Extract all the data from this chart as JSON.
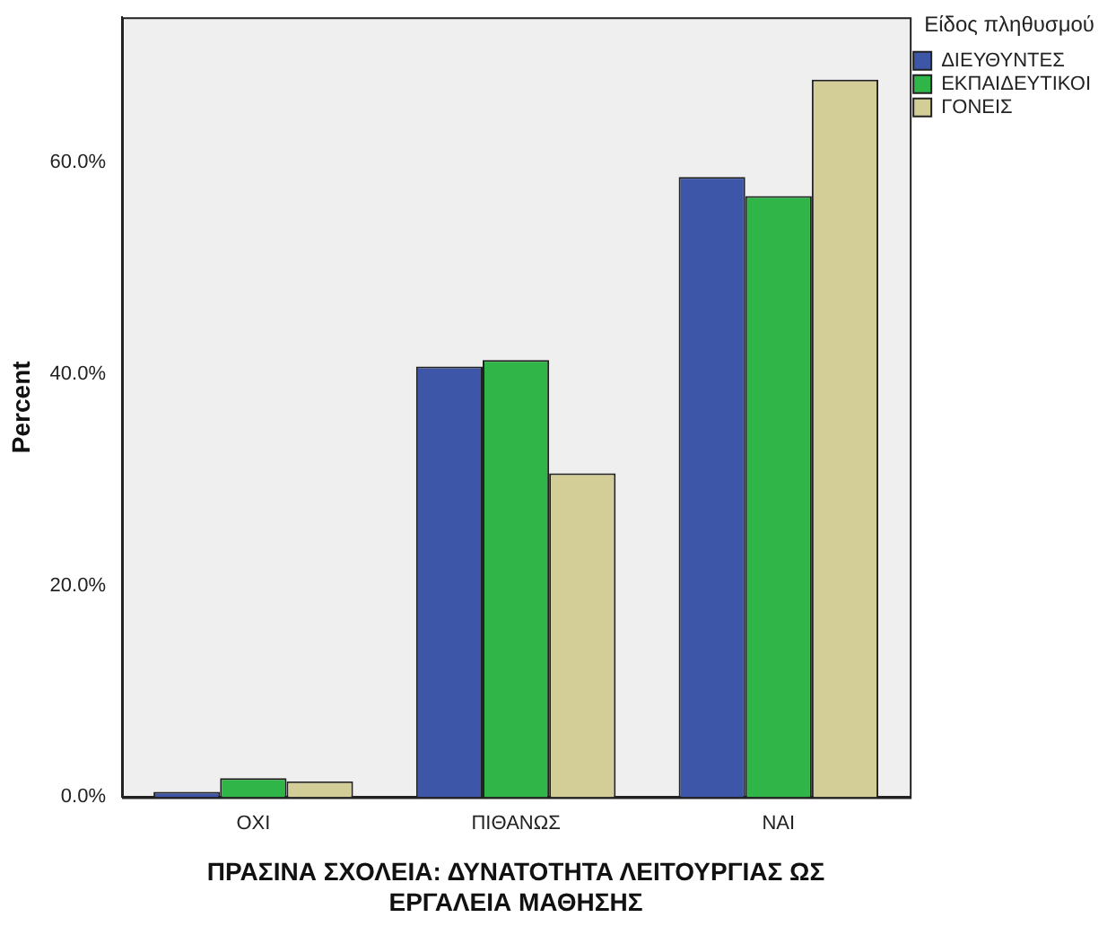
{
  "chart_data": {
    "type": "bar",
    "xlabel": "ΠΡΑΣΙΝΑ ΣΧΟΛΕΙΑ: ΔΥΝΑΤΟΤΗΤΑ ΛΕΙΤΟΥΡΓΙΑΣ ΩΣ ΕΡΓΑΛΕΙΑ ΜΑΘΗΣΗΣ",
    "ylabel": "Percent",
    "legend_title": "Είδος πληθυσμού",
    "categories": [
      "ΟΧΙ",
      "ΠΙΘΑΝΩΣ",
      "ΝΑΙ"
    ],
    "series": [
      {
        "name": "ΔΙΕΥΘΥΝΤΕΣ",
        "color": "#3d56a8",
        "values": [
          0.5,
          40.7,
          58.6
        ]
      },
      {
        "name": "ΕΚΠΑΙΔΕΥΤΙΚΟΙ",
        "color": "#2fb548",
        "values": [
          1.8,
          41.3,
          56.8
        ]
      },
      {
        "name": "ΓΟΝΕΙΣ",
        "color": "#d3ce98",
        "values": [
          1.5,
          30.6,
          67.8
        ]
      }
    ],
    "ylim": [
      0,
      73.7
    ],
    "yticks": [
      {
        "value": 0,
        "label": "0.0%"
      },
      {
        "value": 20,
        "label": "20.0%"
      },
      {
        "value": 40,
        "label": "40.0%"
      },
      {
        "value": 60,
        "label": "60.0%"
      }
    ],
    "grid": false,
    "legend": "top right"
  }
}
